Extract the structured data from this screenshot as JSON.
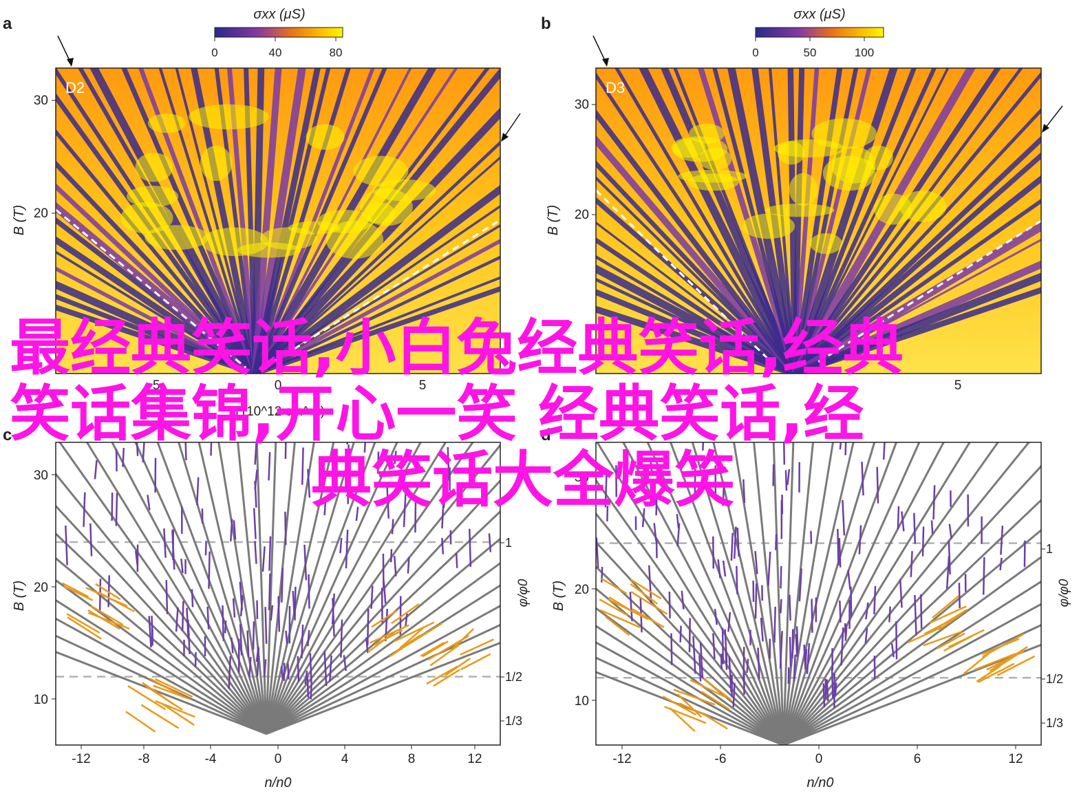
{
  "overlay_text": {
    "line1": "最经典笑话,小白兔经典笑话,经典",
    "line2": "笑话集锦,开心一笑 经典笑话,经",
    "line3": "典笑话大全爆笑"
  },
  "colors": {
    "overlay_text": "#ff14e6",
    "map_low": "#3a2a8c",
    "map_mid": "#e8731a",
    "map_high": "#fff200",
    "fan_gray": "#7a7a7a",
    "fan_purple": "#6a3fa8",
    "fan_orange": "#e89a1a",
    "dashed_white": "#ffffff",
    "dashed_gray": "#b0b0b0"
  },
  "chart_data": [
    {
      "panel": "a",
      "type": "heatmap",
      "annotation": "D2",
      "colorbar": {
        "title": "σxx (μS)",
        "ticks": [
          "0",
          "40",
          "80"
        ],
        "range": [
          0,
          85
        ]
      },
      "xlabel": "n (10^12 cm^-2)",
      "xticks": [
        "-5",
        "0",
        "5"
      ],
      "xlim": [
        -6.5,
        8.0
      ],
      "ylabel": "B (T)",
      "yticks": [
        "20",
        "30"
      ],
      "ylim": [
        7,
        33
      ],
      "fan_origin_n": 0.0,
      "dashed_boundaries": [
        {
          "from": [
            -6.8,
            21.6
          ],
          "to": [
            -0.3,
            7.5
          ]
        },
        {
          "from": [
            0.3,
            7.5
          ],
          "to": [
            7.9,
            19.9
          ]
        }
      ]
    },
    {
      "panel": "b",
      "type": "heatmap",
      "annotation": "D3",
      "colorbar": {
        "title": "σxx (μS)",
        "ticks": [
          "0",
          "50",
          "100"
        ],
        "range": [
          0,
          112
        ]
      },
      "xlabel": "n (10^12 cm^-2)",
      "xticks": [
        "5"
      ],
      "xlim": [
        -7.5,
        7.5
      ],
      "ylabel": "B (T)",
      "yticks": [
        "20",
        "30"
      ],
      "ylim": [
        7,
        33
      ],
      "fan_origin_n": -0.8,
      "dashed_boundaries": [
        {
          "from": [
            -7.5,
            22.6
          ],
          "to": [
            -1.6,
            8.0
          ]
        },
        {
          "from": [
            0.0,
            8.0
          ],
          "to": [
            7.5,
            20.0
          ]
        }
      ]
    },
    {
      "panel": "c",
      "type": "line",
      "xlabel": "n/n0",
      "xticks": [
        "-12",
        "-8",
        "-4",
        "0",
        "4",
        "8",
        "12"
      ],
      "xlim": [
        -14,
        14.5
      ],
      "ylabel": "B (T)",
      "yticks": [
        "10",
        "20",
        "30"
      ],
      "ylim": [
        6,
        33
      ],
      "right_axis": {
        "label": "φ/φ0",
        "ticks": [
          "1/3",
          "1/2",
          "1"
        ],
        "tick_B": [
          8.0,
          12.1,
          24.1
        ]
      },
      "dashed_B": [
        12.1,
        24.1
      ],
      "fan_origin": [
        -0.5,
        7.0
      ]
    },
    {
      "panel": "d",
      "type": "line",
      "xlabel": "n/n0",
      "xticks": [
        "-12",
        "-6",
        "0",
        "6",
        "12"
      ],
      "xlim": [
        -13.5,
        13.8
      ],
      "ylabel": "B (T)",
      "yticks": [
        "10",
        "20",
        "30"
      ],
      "ylim": [
        6,
        33
      ],
      "right_axis": {
        "label": "φ/φ0",
        "ticks": [
          "1/3",
          "1/2",
          "1"
        ],
        "tick_B": [
          8.0,
          12.0,
          24.0
        ]
      },
      "dashed_B": [
        12.0,
        24.0
      ],
      "fan_origin": [
        -2.0,
        6.0
      ]
    }
  ],
  "panel_labels": [
    "a",
    "b",
    "c",
    "d"
  ]
}
